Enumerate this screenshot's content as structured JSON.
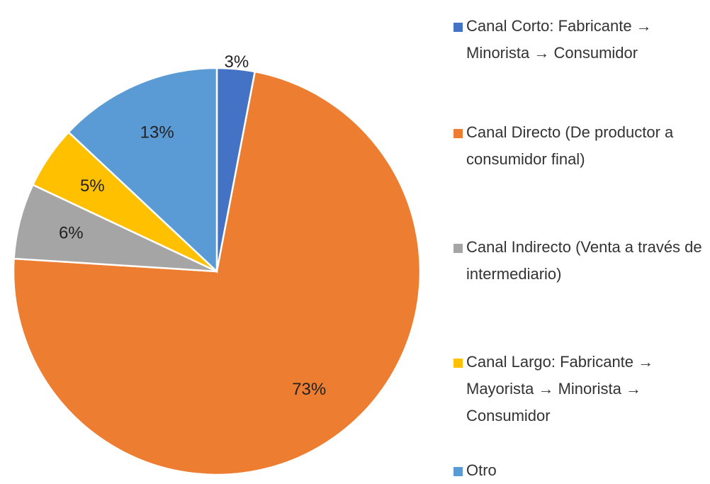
{
  "chart_data": {
    "type": "pie",
    "categories": [
      "Canal Corto: Fabricante → Minorista → Consumidor",
      "Canal Directo (De productor a consumidor final)",
      "Canal Indirecto (Venta a través de intermediario)",
      "Canal Largo: Fabricante → Mayorista → Minorista → Consumidor",
      "Otro"
    ],
    "values": [
      3,
      73,
      6,
      5,
      13
    ],
    "value_labels": [
      "3%",
      "73%",
      "6%",
      "5%",
      "13%"
    ],
    "colors": [
      "#4472c4",
      "#ed7d31",
      "#a5a5a5",
      "#ffc000",
      "#5b9bd5"
    ],
    "legend": "right"
  }
}
